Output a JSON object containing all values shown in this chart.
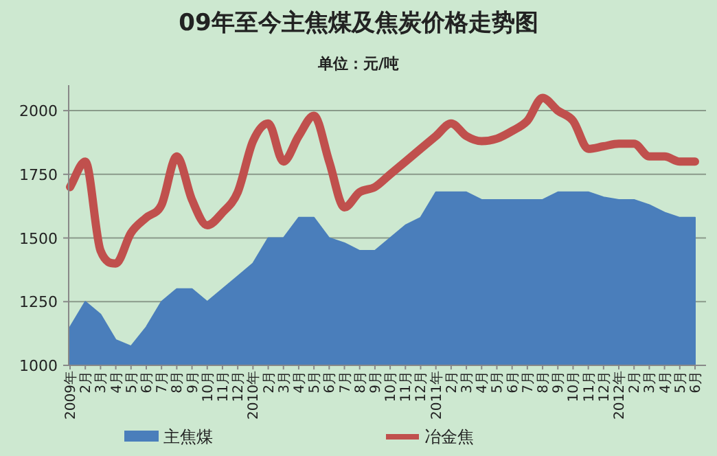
{
  "chart_data": {
    "type": "area",
    "title": "09年至今主焦煤及焦炭价格走势图",
    "subtitle": "单位：元/吨",
    "categories": [
      "2009年",
      "2月",
      "3月",
      "4月",
      "5月",
      "6月",
      "7月",
      "8月",
      "9月",
      "10月",
      "11月",
      "12月",
      "2010年",
      "2月",
      "3月",
      "4月",
      "5月",
      "6月",
      "7月",
      "8月",
      "9月",
      "10月",
      "11月",
      "12月",
      "2011年",
      "2月",
      "3月",
      "4月",
      "5月",
      "6月",
      "7月",
      "8月",
      "9月",
      "10月",
      "11月",
      "12月",
      "2012年",
      "2月",
      "3月",
      "4月",
      "5月",
      "6月"
    ],
    "series": [
      {
        "name": "主焦煤",
        "color": "#4a7ebb",
        "values": [
          1150,
          1250,
          1200,
          1100,
          1075,
          1150,
          1250,
          1300,
          1300,
          1250,
          1300,
          1350,
          1400,
          1500,
          1500,
          1580,
          1580,
          1500,
          1480,
          1450,
          1450,
          1500,
          1550,
          1580,
          1680,
          1680,
          1680,
          1650,
          1650,
          1650,
          1650,
          1650,
          1680,
          1680,
          1680,
          1660,
          1650,
          1650,
          1630,
          1600,
          1580,
          1580
        ]
      },
      {
        "name": "冶金焦",
        "type": "line",
        "color": "#c0504d",
        "values": [
          1700,
          1800,
          1450,
          1400,
          1520,
          1580,
          1630,
          1820,
          1650,
          1550,
          1600,
          1680,
          1880,
          1950,
          1800,
          1900,
          1980,
          1800,
          1620,
          1680,
          1700,
          1750,
          1800,
          1850,
          1900,
          1950,
          1900,
          1880,
          1890,
          1920,
          1960,
          2050,
          2000,
          1960,
          1850,
          1860,
          1870,
          1870,
          1820,
          1820,
          1800,
          1800
        ]
      }
    ],
    "ylim": [
      1000,
      2100
    ],
    "yticks": [
      1000,
      1250,
      1500,
      1750,
      2000
    ],
    "grid": "y",
    "legend": "bottom"
  }
}
